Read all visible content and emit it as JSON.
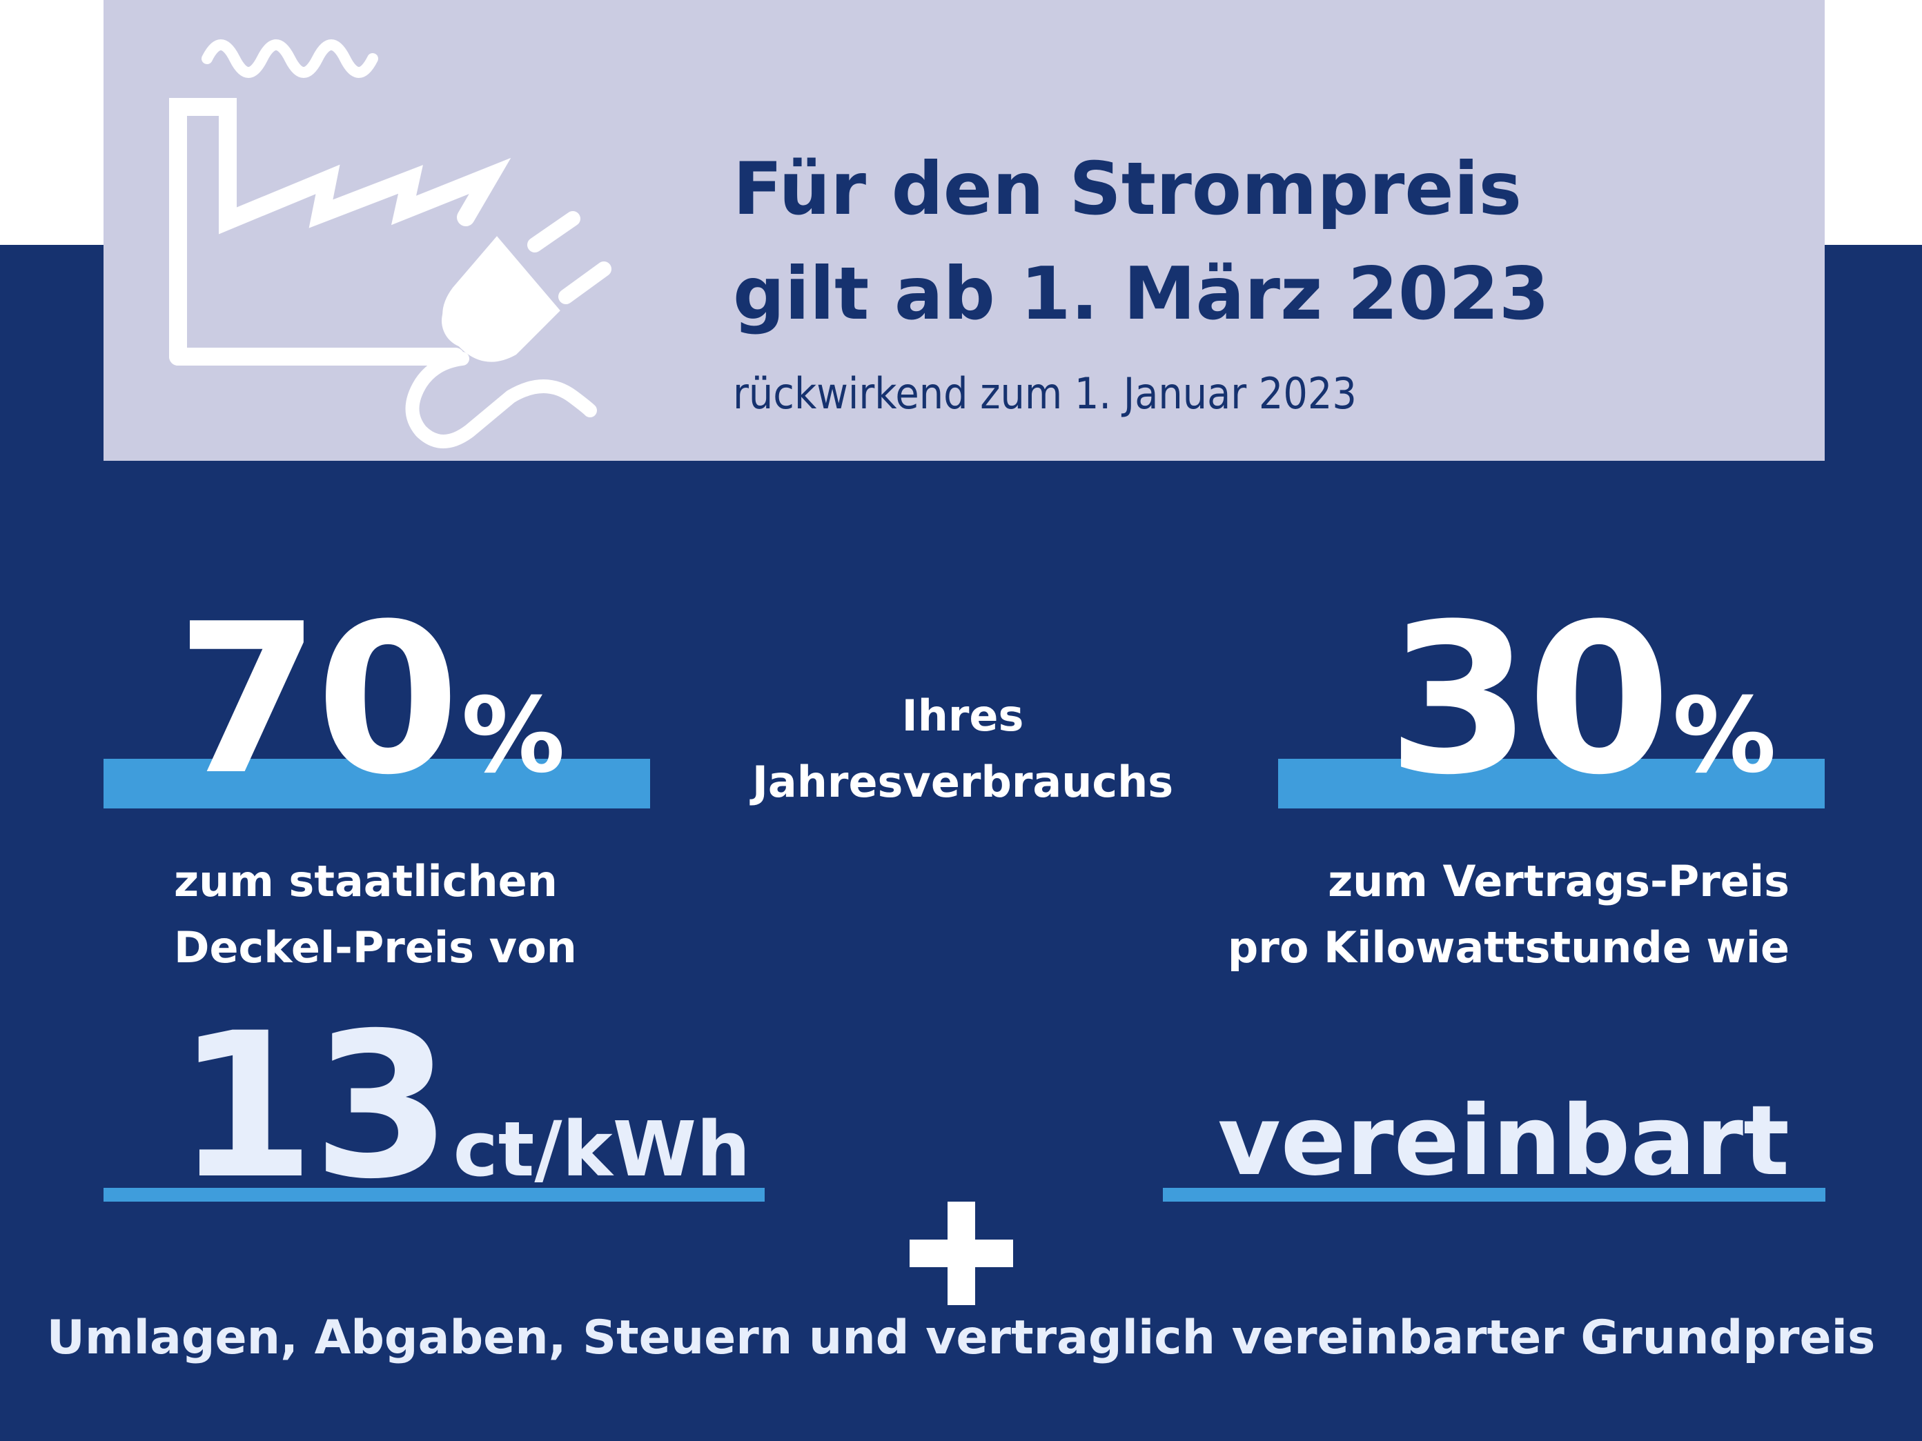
{
  "header": {
    "title_line1": "Für den Strompreis",
    "title_line2": "gilt ab 1. März 2023",
    "subtitle": "rückwirkend zum 1. Januar 2023",
    "icon": "factory-plug-icon"
  },
  "left": {
    "percent_value": "70",
    "percent_symbol": "%",
    "label_line1": "zum staatlichen",
    "label_line2": "Deckel-Preis von",
    "price_value": "13",
    "price_unit": "ct/kWh"
  },
  "center": {
    "label_line1": "Ihres",
    "label_line2": "Jahresverbrauchs"
  },
  "right": {
    "percent_value": "30",
    "percent_symbol": "%",
    "label_line1": "zum Vertrags-Preis",
    "label_line2": "pro Kilowattstunde wie",
    "agreed_text": "vereinbart"
  },
  "footer": {
    "plus_symbol": "plus-icon",
    "text": "Umlagen, Abgaben, Steuern und vertraglich vereinbarter Grundpreis"
  },
  "colors": {
    "navy": "#16326f",
    "header_bg": "#cbcce2",
    "accent_bar": "#3f9ddc",
    "white": "#ffffff"
  }
}
